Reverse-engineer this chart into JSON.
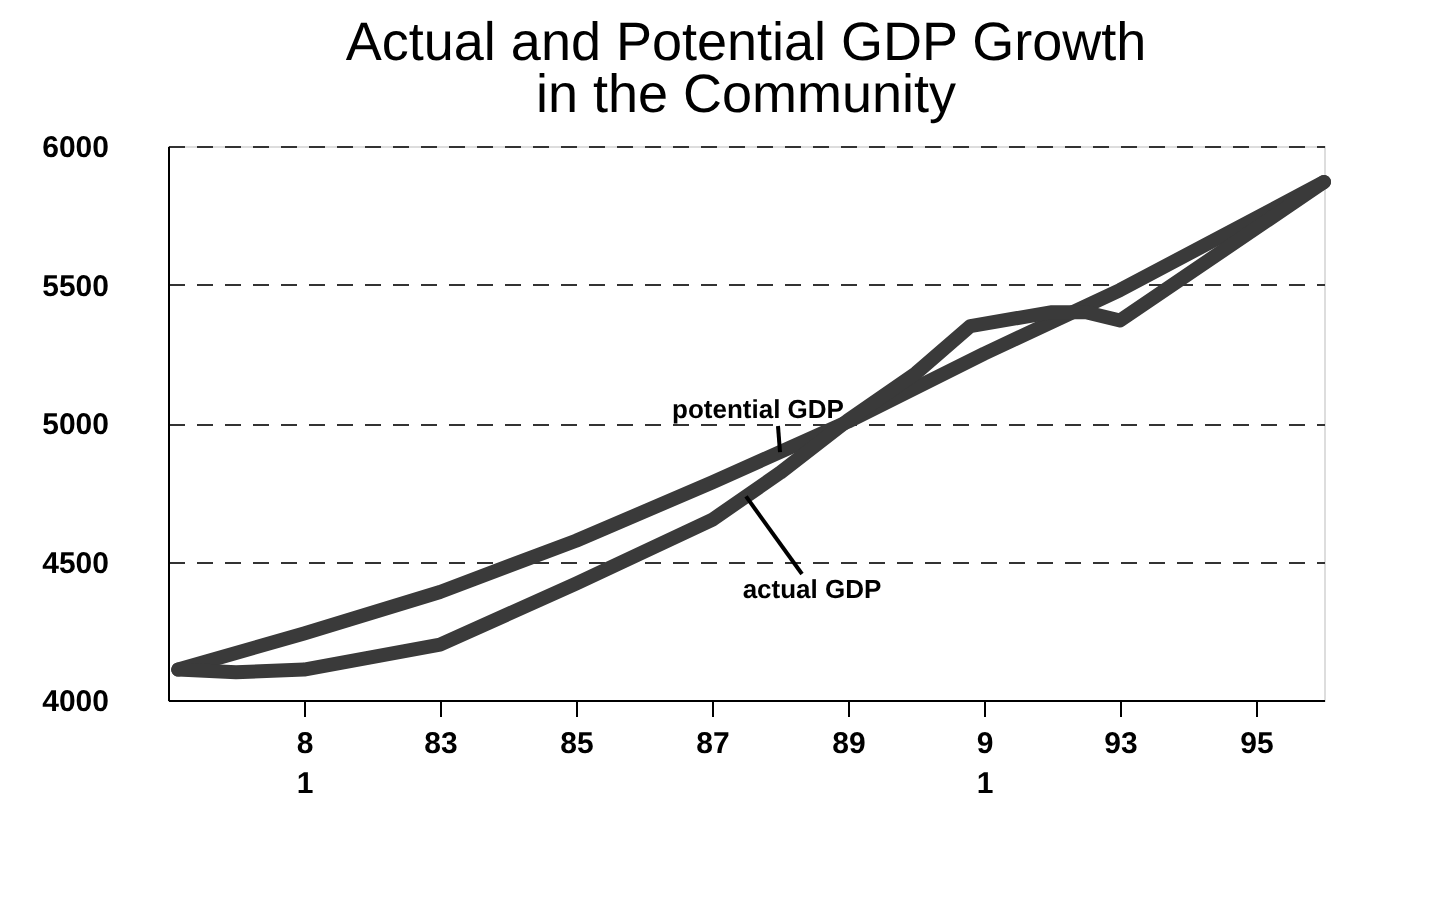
{
  "chart_data": {
    "type": "line",
    "title": "Actual and Potential  GDP Growth\nin the Community",
    "xlim": [
      79,
      96
    ],
    "ylim": [
      4000,
      6000
    ],
    "xticks": [
      {
        "value": 81,
        "label": "8\n1"
      },
      83,
      85,
      87,
      89,
      {
        "value": 91,
        "label": "9\n1"
      },
      93,
      95
    ],
    "yticks": [
      4000,
      4500,
      5000,
      5500,
      6000
    ],
    "grid": "y",
    "legend": false,
    "line_style": "solid",
    "series": [
      {
        "name": "potential GDP",
        "color": "#3a3a3a",
        "x": [
          79.15,
          81,
          83,
          85,
          87,
          89,
          91,
          93,
          96
        ],
        "values": [
          4110,
          4240,
          4390,
          4575,
          4785,
          5005,
          5250,
          5480,
          5870
        ]
      },
      {
        "name": "actual GDP",
        "color": "#3a3a3a",
        "x": [
          79.15,
          80,
          81,
          83,
          85,
          87,
          88,
          89,
          90,
          90.8,
          92,
          92.5,
          93,
          96
        ],
        "values": [
          4110,
          4100,
          4110,
          4200,
          4420,
          4650,
          4820,
          5010,
          5180,
          5350,
          5400,
          5400,
          5370,
          5870
        ]
      }
    ]
  }
}
